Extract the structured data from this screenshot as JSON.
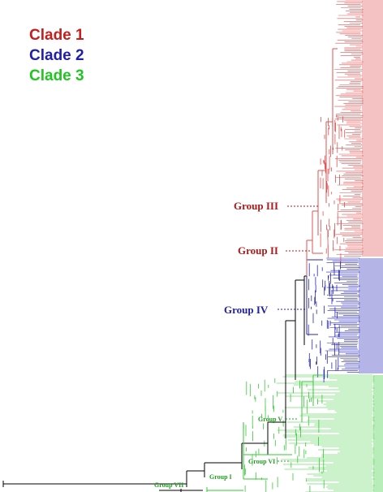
{
  "legend": [
    {
      "label": "Clade 1",
      "color": "#c41e1e"
    },
    {
      "label": "Clade 2",
      "color": "#1f1fa8"
    },
    {
      "label": "Clade 3",
      "color": "#22c422"
    }
  ],
  "groups": {
    "group_iii": "Group III",
    "group_ii": "Group II",
    "group_iv": "Group IV",
    "group_v": "Group V",
    "group_vi": "Group VI",
    "group_i": "Group I",
    "group_vii": "Group VII"
  },
  "colors": {
    "clade1": "#e05050",
    "clade1_label": "#b01a1a",
    "clade2": "#2727b8",
    "clade3": "#35c935",
    "backbone": "#000000"
  },
  "icons": {
    "scale": "scale-bar-icon"
  }
}
